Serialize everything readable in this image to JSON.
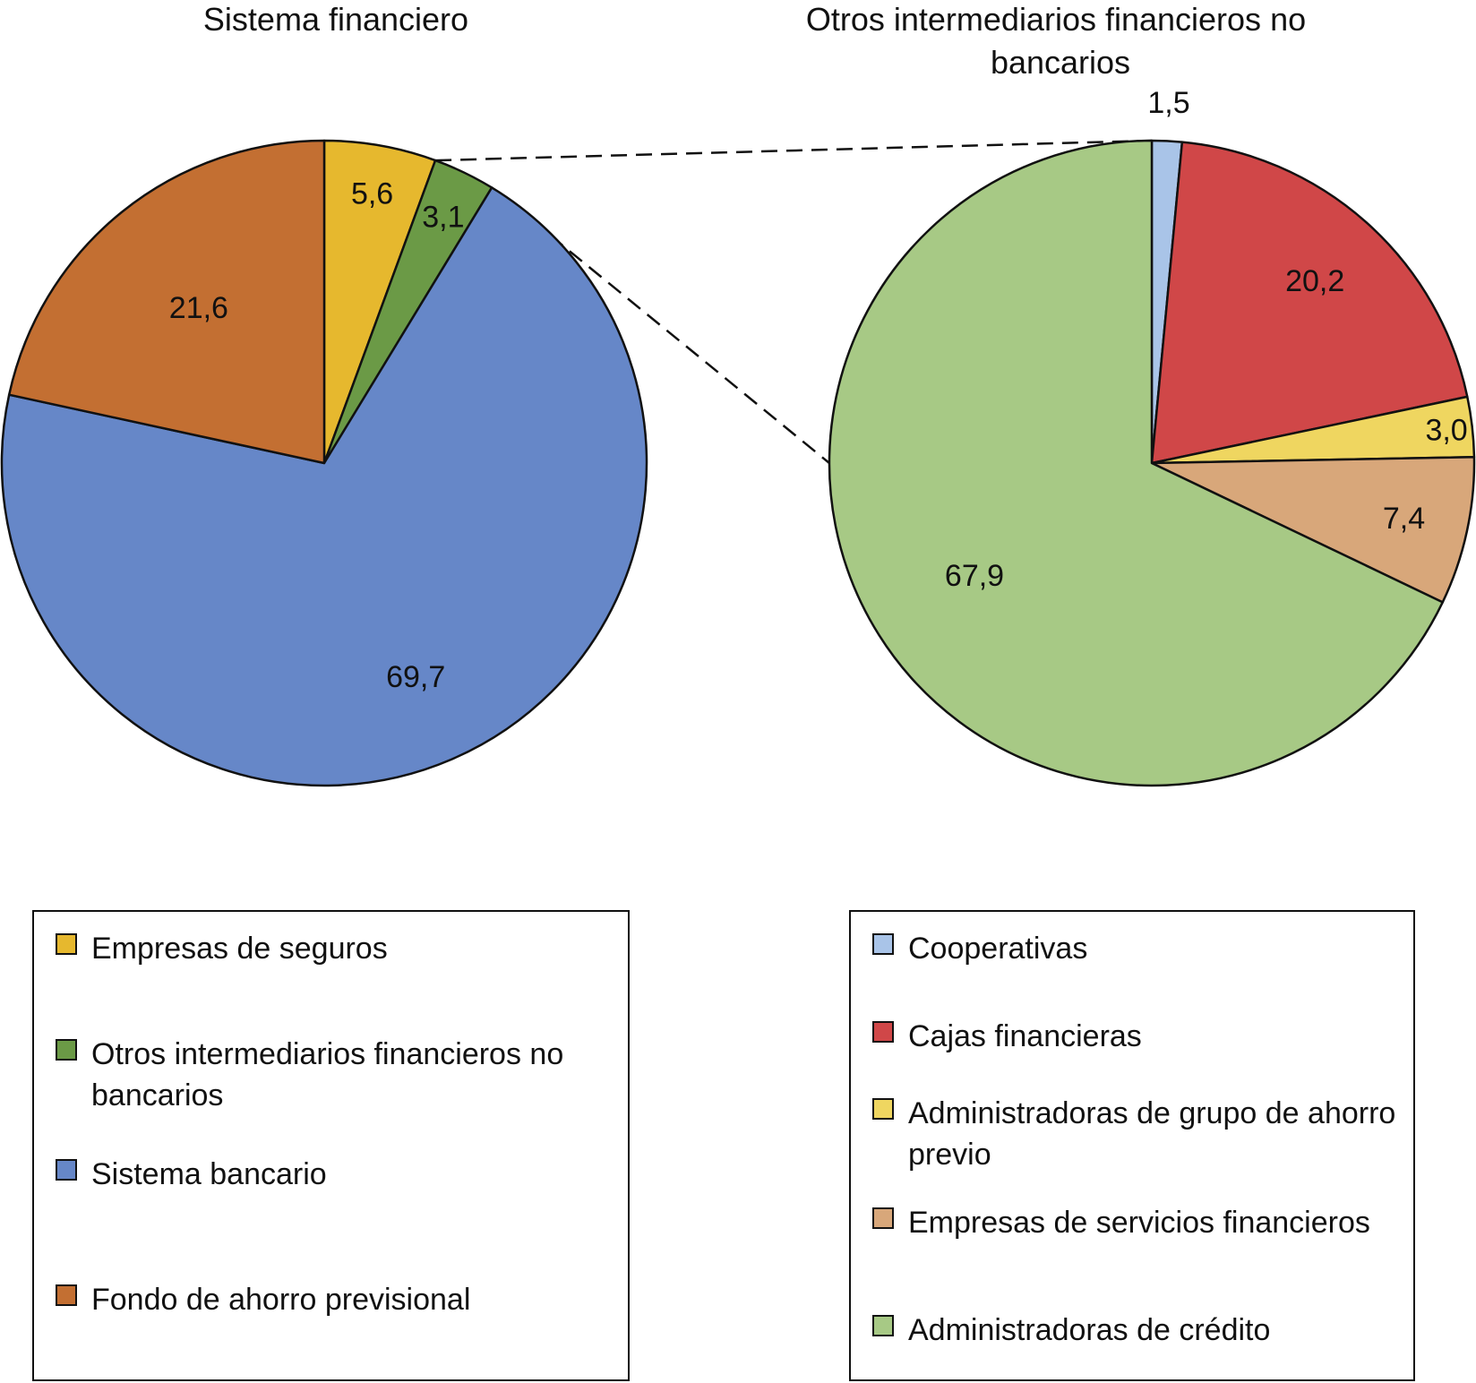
{
  "chart_data": [
    {
      "type": "pie",
      "title": "Sistema financiero",
      "categories": [
        "Empresas de seguros",
        "Otros intermediarios financieros no bancarios",
        "Sistema bancario",
        "Fondo de ahorro previsional"
      ],
      "values": [
        5.6,
        3.1,
        69.7,
        21.6
      ],
      "value_labels": [
        "5,6",
        "3,1",
        "69,7",
        "21,6"
      ],
      "colors": [
        "#e6b82e",
        "#6b9a46",
        "#6687c8",
        "#c36f32"
      ],
      "legend": "below"
    },
    {
      "type": "pie",
      "title": "Otros intermediarios financieros no bancarios",
      "categories": [
        "Cooperativas",
        "Cajas financieras",
        "Administradoras de grupo de ahorro previo",
        "Empresas de servicios financieros",
        "Administradoras de crédito"
      ],
      "values": [
        1.5,
        20.2,
        3.0,
        7.4,
        67.9
      ],
      "value_labels": [
        "1,5",
        "20,2",
        "3,0",
        "7,4",
        "67,9"
      ],
      "colors": [
        "#a9c4e8",
        "#d04748",
        "#efd660",
        "#d8a77a",
        "#a7c985"
      ],
      "legend": "below"
    }
  ]
}
